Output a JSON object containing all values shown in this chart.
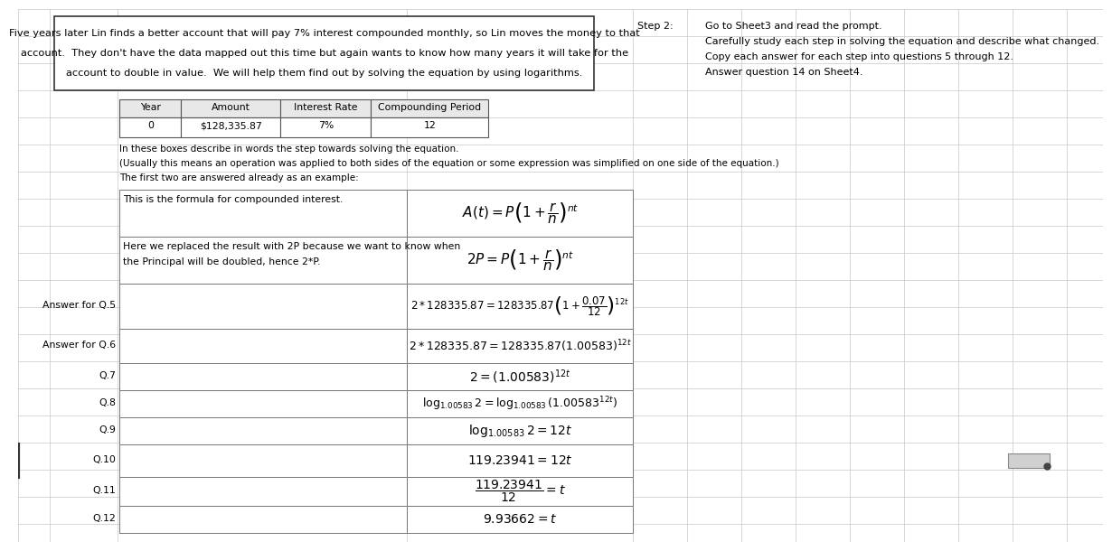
{
  "bg_color": "#ffffff",
  "grid_color": "#c8c8c8",
  "step2_label": "Step 2:",
  "step2_lines": [
    "Go to Sheet3 and read the prompt.",
    "Carefully study each step in solving the equation and describe what changed.",
    "Copy each answer for each step into questions 5 through 12.",
    "Answer question 14 on Sheet4."
  ],
  "intro_text_lines": [
    "Five years later Lin finds a better account that will pay 7% interest compounded monthly, so Lin moves the money to that",
    "account.  They don't have the data mapped out this time but again wants to know how many years it will take for the",
    "account to double in value.  We will help them find out by solving the equation by using logarithms."
  ],
  "table_headers": [
    "Year",
    "Amount",
    "Interest Rate",
    "Compounding Period"
  ],
  "table_values": [
    "0",
    "$128,335.87",
    "7%",
    "12"
  ],
  "instructions": [
    "In these boxes describe in words the step towards solving the equation.",
    "(Usually this means an operation was applied to both sides of the equation or some expression was simplified on one side of the equation.)",
    "The first two are answered already as an example:"
  ],
  "desc_row0": "This is the formula for compounded interest.",
  "desc_row1a": "Here we replaced the result with 2P because we want to know when",
  "desc_row1b": "the Principal will be doubled, hence 2*P.",
  "side_labels": [
    "Answer for Q.5",
    "Answer for Q.6",
    "Q.7",
    "Q.8",
    "Q.9",
    "Q.10",
    "Q.11",
    "Q.12"
  ]
}
